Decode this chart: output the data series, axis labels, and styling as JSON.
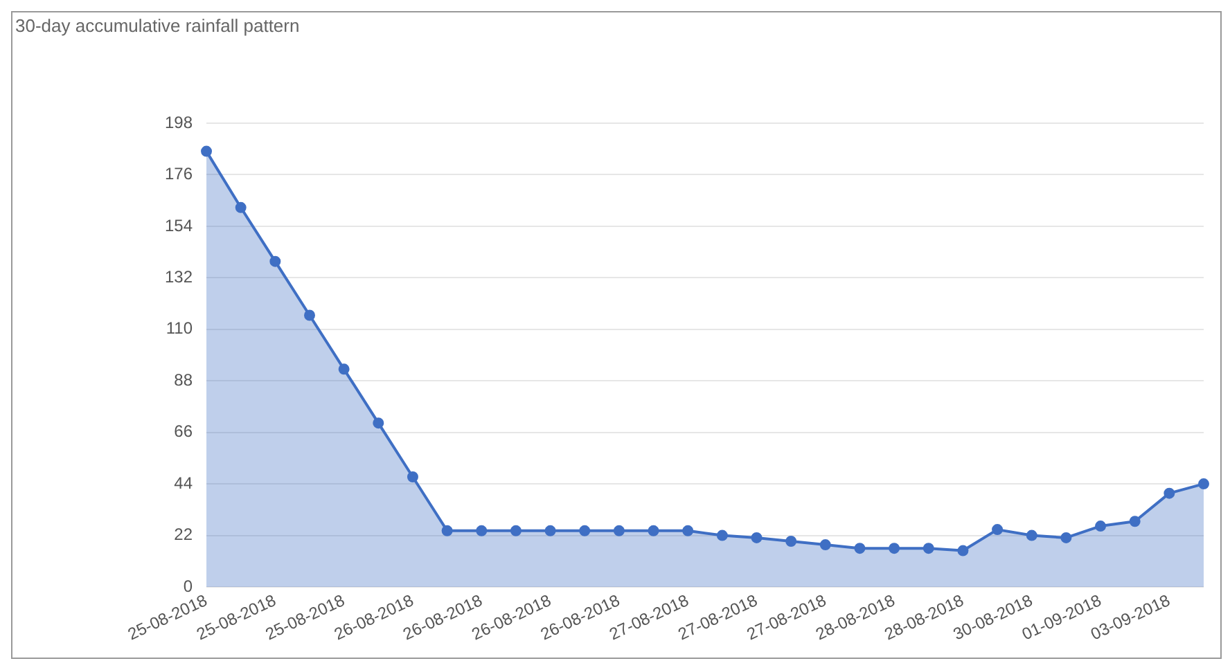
{
  "chart_data": {
    "type": "area",
    "title": "30-day accumulative rainfall pattern",
    "categories": [
      "25-08-2018",
      null,
      "25-08-2018",
      null,
      "25-08-2018",
      null,
      "26-08-2018",
      null,
      "26-08-2018",
      null,
      "26-08-2018",
      null,
      "26-08-2018",
      null,
      "27-08-2018",
      null,
      "27-08-2018",
      null,
      "27-08-2018",
      null,
      "28-08-2018",
      null,
      "28-08-2018",
      null,
      "30-08-2018",
      null,
      "01-09-2018",
      null,
      "03-09-2018",
      null
    ],
    "series": [
      {
        "color": "#3f6fc4",
        "values": [
          186,
          162,
          139,
          116,
          93,
          70,
          47,
          24,
          24,
          24,
          24,
          24,
          24,
          24,
          24,
          22,
          21,
          19.5,
          18,
          16.5,
          16.5,
          16.5,
          15.5,
          24.5,
          22,
          21,
          26,
          28,
          40,
          44
        ]
      }
    ],
    "ylim": [
      0,
      198
    ],
    "yticks": [
      0,
      22,
      44,
      66,
      88,
      110,
      132,
      154,
      176,
      198
    ],
    "grid": "y",
    "legend": false,
    "marker": "circle"
  }
}
